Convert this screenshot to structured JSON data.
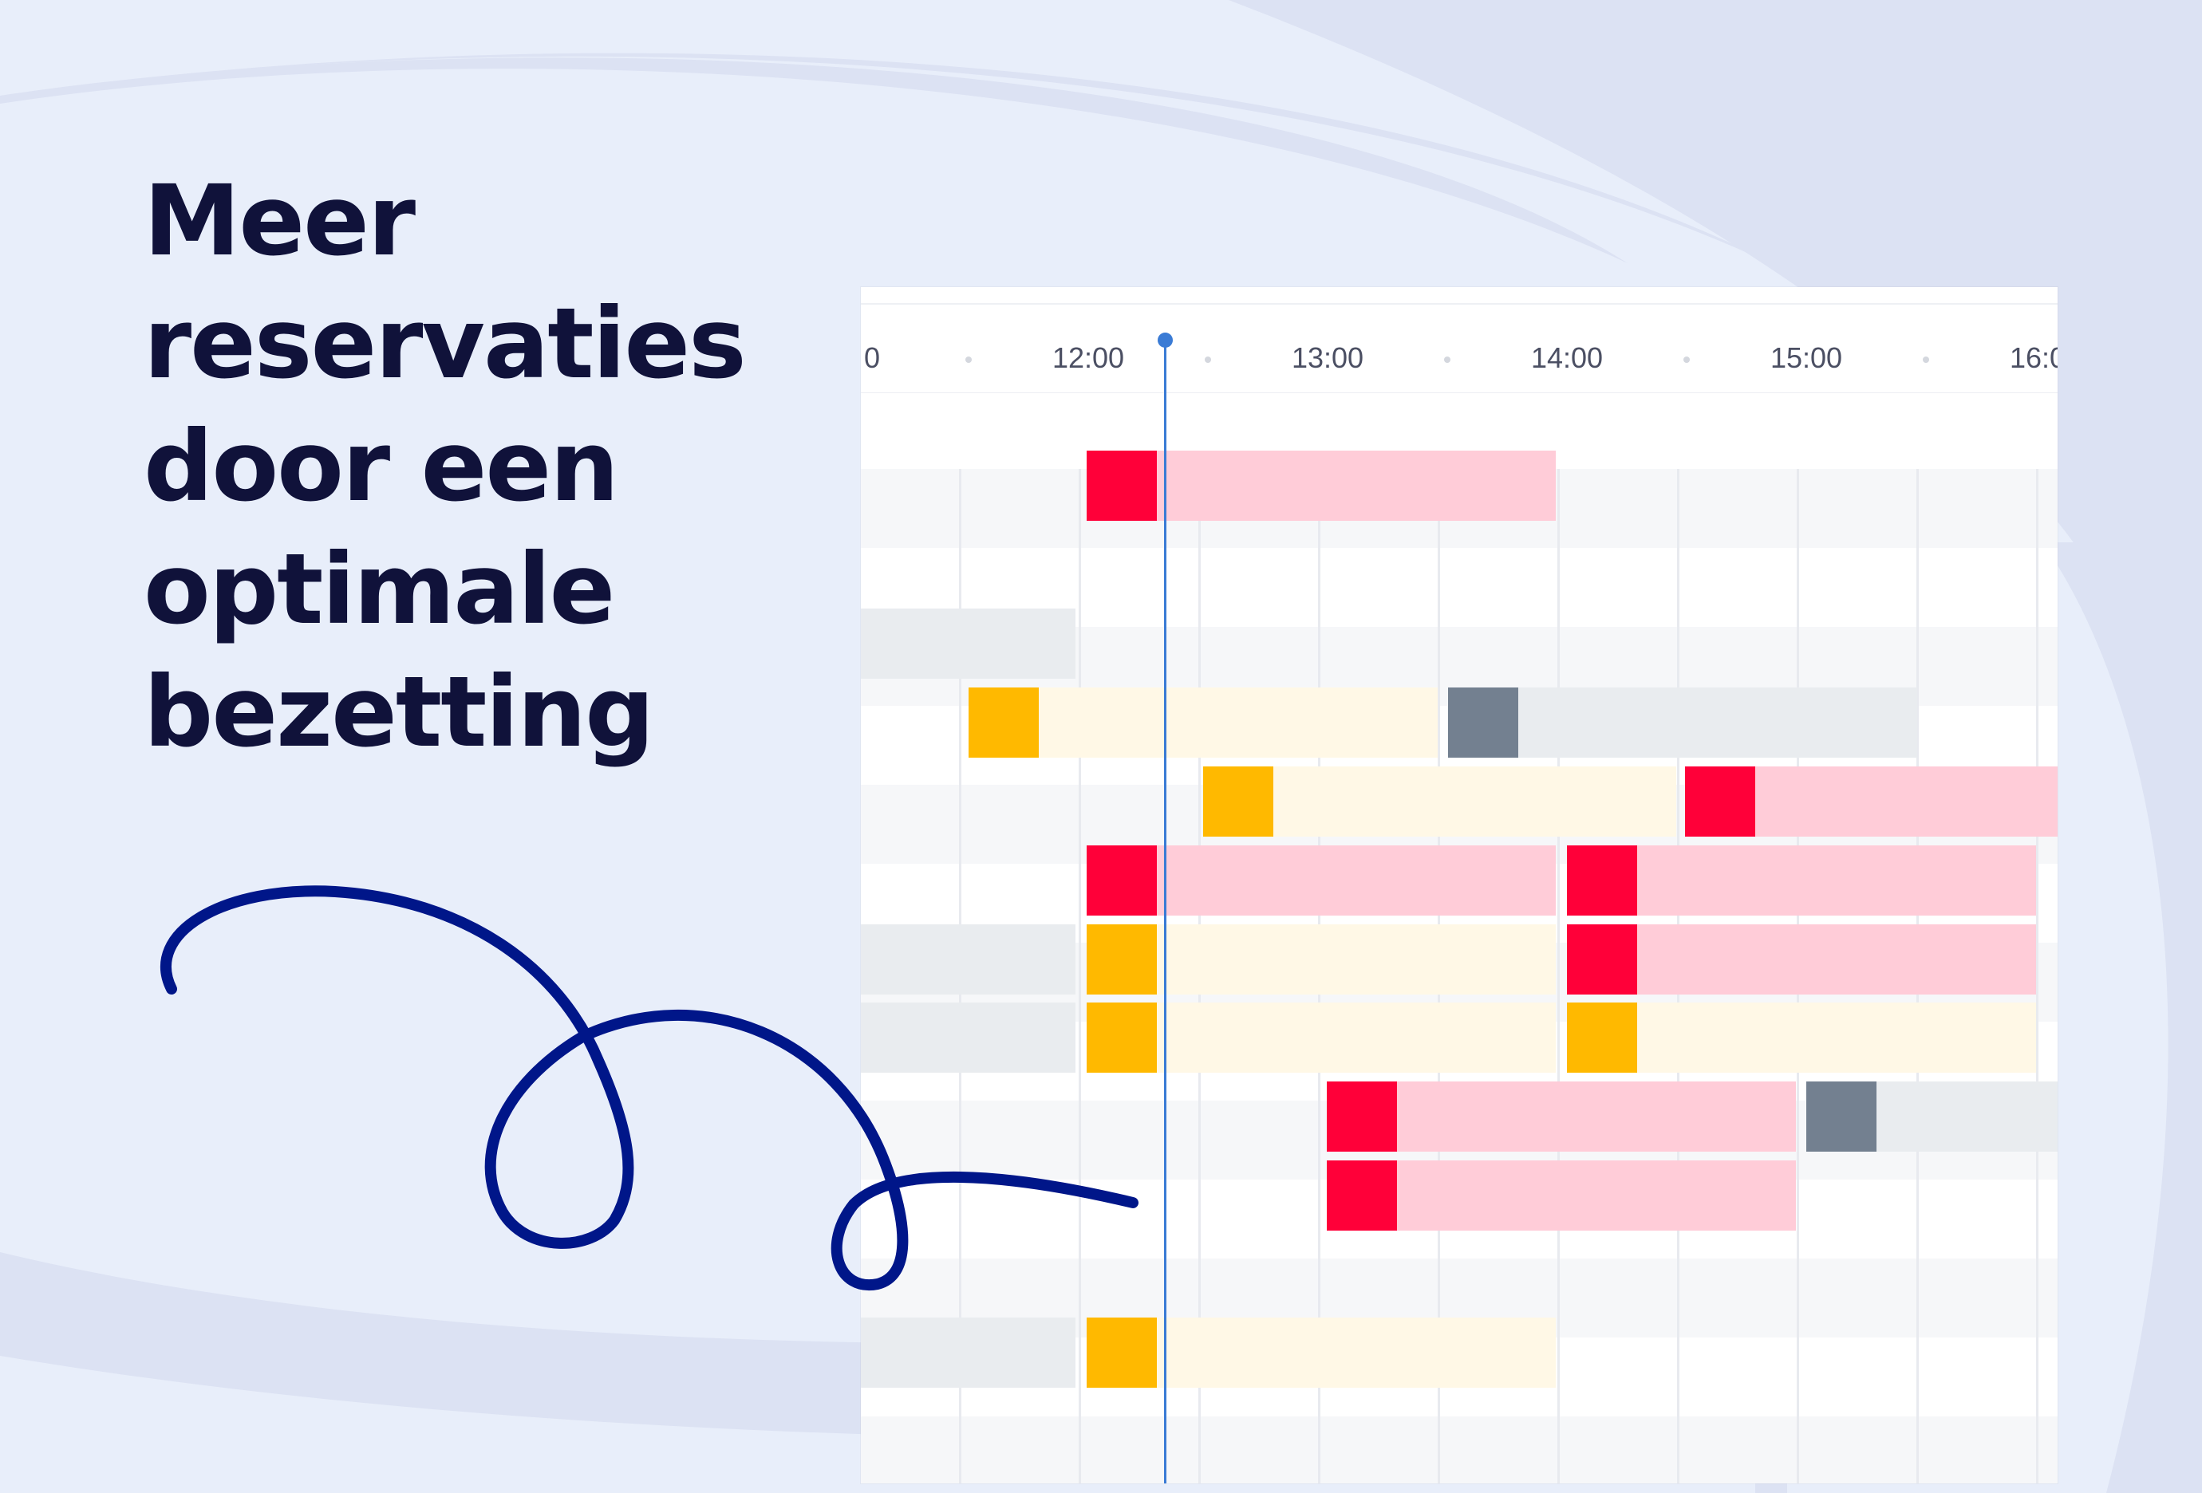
{
  "headline": {
    "lines": [
      "Meer",
      "reservaties",
      "door een",
      "optimale",
      "bezetting"
    ]
  },
  "colors": {
    "background": "#e8eefa",
    "background_shape": "#dce2f3",
    "headline": "#10123a",
    "squiggle": "#001689",
    "current_time": "#3a7bd5",
    "reservation_red": "#ff0039",
    "reservation_red_light": "#ffccd8",
    "reservation_amber": "#ffb900",
    "reservation_amber_light": "#fff8e6",
    "reservation_slate": "#738090",
    "reservation_grey_light": "#e9ecef"
  },
  "scheduler": {
    "time_labels": [
      "0",
      "12:00",
      "13:00",
      "14:00",
      "15:00",
      "16:0"
    ]
  }
}
